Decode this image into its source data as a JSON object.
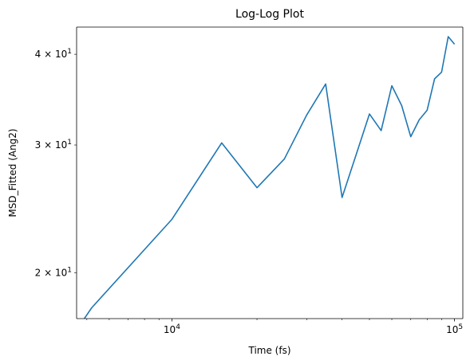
{
  "chart_data": {
    "type": "line",
    "title": "Log-Log Plot",
    "xlabel": "Time (fs)",
    "ylabel": "MSD_Fitted (Ang2)",
    "xscale": "log",
    "yscale": "log",
    "xlim": [
      4600,
      107000
    ],
    "ylim": [
      17.3,
      43.6
    ],
    "grid": false,
    "line_color": "#1f77b4",
    "x_tick_labels": [
      {
        "value": 10000,
        "base": "10",
        "exp": "4"
      },
      {
        "value": 100000,
        "base": "10",
        "exp": "5"
      }
    ],
    "y_tick_labels": [
      {
        "value": 20,
        "mant": "2",
        "base": "10",
        "exp": "1"
      },
      {
        "value": 30,
        "mant": "3",
        "base": "10",
        "exp": "1"
      },
      {
        "value": 40,
        "mant": "4",
        "base": "10",
        "exp": "1"
      }
    ],
    "series": [
      {
        "x": [
          4800,
          5200,
          10000,
          15000,
          20000,
          25000,
          30000,
          35000,
          40000,
          45000,
          50000,
          55000,
          60000,
          65000,
          70000,
          75000,
          80000,
          85000,
          90000,
          95000,
          100000
        ],
        "y": [
          17.1,
          17.9,
          23.7,
          30.2,
          26.2,
          28.7,
          33.0,
          36.4,
          25.4,
          29.2,
          33.1,
          31.4,
          36.2,
          34.0,
          30.8,
          32.5,
          33.5,
          37.0,
          37.8,
          42.3,
          41.3
        ]
      }
    ]
  }
}
